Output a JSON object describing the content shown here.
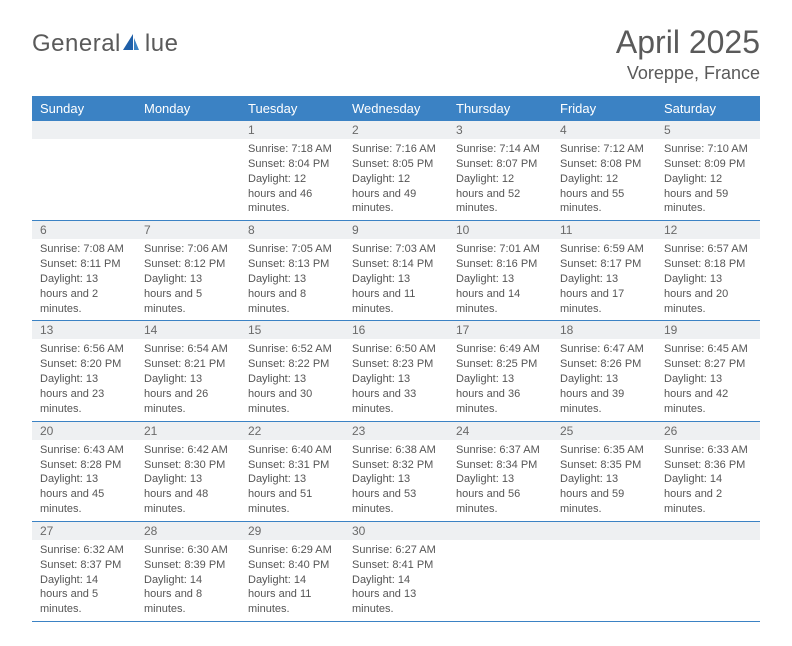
{
  "logo": {
    "textPrefix": "General",
    "textSuffix": "lue",
    "iconColor": "#1f5fa8"
  },
  "header": {
    "monthTitle": "April 2025",
    "location": "Voreppe, France"
  },
  "colors": {
    "headerBg": "#3b82c4",
    "headerText": "#ffffff",
    "dayNumBg": "#eef0f2",
    "borderColor": "#3b82c4",
    "bodyText": "#555555"
  },
  "dayNames": [
    "Sunday",
    "Monday",
    "Tuesday",
    "Wednesday",
    "Thursday",
    "Friday",
    "Saturday"
  ],
  "weeks": [
    [
      {
        "day": "",
        "lines": []
      },
      {
        "day": "",
        "lines": []
      },
      {
        "day": "1",
        "lines": [
          "Sunrise: 7:18 AM",
          "Sunset: 8:04 PM",
          "Daylight: 12 hours and 46 minutes."
        ]
      },
      {
        "day": "2",
        "lines": [
          "Sunrise: 7:16 AM",
          "Sunset: 8:05 PM",
          "Daylight: 12 hours and 49 minutes."
        ]
      },
      {
        "day": "3",
        "lines": [
          "Sunrise: 7:14 AM",
          "Sunset: 8:07 PM",
          "Daylight: 12 hours and 52 minutes."
        ]
      },
      {
        "day": "4",
        "lines": [
          "Sunrise: 7:12 AM",
          "Sunset: 8:08 PM",
          "Daylight: 12 hours and 55 minutes."
        ]
      },
      {
        "day": "5",
        "lines": [
          "Sunrise: 7:10 AM",
          "Sunset: 8:09 PM",
          "Daylight: 12 hours and 59 minutes."
        ]
      }
    ],
    [
      {
        "day": "6",
        "lines": [
          "Sunrise: 7:08 AM",
          "Sunset: 8:11 PM",
          "Daylight: 13 hours and 2 minutes."
        ]
      },
      {
        "day": "7",
        "lines": [
          "Sunrise: 7:06 AM",
          "Sunset: 8:12 PM",
          "Daylight: 13 hours and 5 minutes."
        ]
      },
      {
        "day": "8",
        "lines": [
          "Sunrise: 7:05 AM",
          "Sunset: 8:13 PM",
          "Daylight: 13 hours and 8 minutes."
        ]
      },
      {
        "day": "9",
        "lines": [
          "Sunrise: 7:03 AM",
          "Sunset: 8:14 PM",
          "Daylight: 13 hours and 11 minutes."
        ]
      },
      {
        "day": "10",
        "lines": [
          "Sunrise: 7:01 AM",
          "Sunset: 8:16 PM",
          "Daylight: 13 hours and 14 minutes."
        ]
      },
      {
        "day": "11",
        "lines": [
          "Sunrise: 6:59 AM",
          "Sunset: 8:17 PM",
          "Daylight: 13 hours and 17 minutes."
        ]
      },
      {
        "day": "12",
        "lines": [
          "Sunrise: 6:57 AM",
          "Sunset: 8:18 PM",
          "Daylight: 13 hours and 20 minutes."
        ]
      }
    ],
    [
      {
        "day": "13",
        "lines": [
          "Sunrise: 6:56 AM",
          "Sunset: 8:20 PM",
          "Daylight: 13 hours and 23 minutes."
        ]
      },
      {
        "day": "14",
        "lines": [
          "Sunrise: 6:54 AM",
          "Sunset: 8:21 PM",
          "Daylight: 13 hours and 26 minutes."
        ]
      },
      {
        "day": "15",
        "lines": [
          "Sunrise: 6:52 AM",
          "Sunset: 8:22 PM",
          "Daylight: 13 hours and 30 minutes."
        ]
      },
      {
        "day": "16",
        "lines": [
          "Sunrise: 6:50 AM",
          "Sunset: 8:23 PM",
          "Daylight: 13 hours and 33 minutes."
        ]
      },
      {
        "day": "17",
        "lines": [
          "Sunrise: 6:49 AM",
          "Sunset: 8:25 PM",
          "Daylight: 13 hours and 36 minutes."
        ]
      },
      {
        "day": "18",
        "lines": [
          "Sunrise: 6:47 AM",
          "Sunset: 8:26 PM",
          "Daylight: 13 hours and 39 minutes."
        ]
      },
      {
        "day": "19",
        "lines": [
          "Sunrise: 6:45 AM",
          "Sunset: 8:27 PM",
          "Daylight: 13 hours and 42 minutes."
        ]
      }
    ],
    [
      {
        "day": "20",
        "lines": [
          "Sunrise: 6:43 AM",
          "Sunset: 8:28 PM",
          "Daylight: 13 hours and 45 minutes."
        ]
      },
      {
        "day": "21",
        "lines": [
          "Sunrise: 6:42 AM",
          "Sunset: 8:30 PM",
          "Daylight: 13 hours and 48 minutes."
        ]
      },
      {
        "day": "22",
        "lines": [
          "Sunrise: 6:40 AM",
          "Sunset: 8:31 PM",
          "Daylight: 13 hours and 51 minutes."
        ]
      },
      {
        "day": "23",
        "lines": [
          "Sunrise: 6:38 AM",
          "Sunset: 8:32 PM",
          "Daylight: 13 hours and 53 minutes."
        ]
      },
      {
        "day": "24",
        "lines": [
          "Sunrise: 6:37 AM",
          "Sunset: 8:34 PM",
          "Daylight: 13 hours and 56 minutes."
        ]
      },
      {
        "day": "25",
        "lines": [
          "Sunrise: 6:35 AM",
          "Sunset: 8:35 PM",
          "Daylight: 13 hours and 59 minutes."
        ]
      },
      {
        "day": "26",
        "lines": [
          "Sunrise: 6:33 AM",
          "Sunset: 8:36 PM",
          "Daylight: 14 hours and 2 minutes."
        ]
      }
    ],
    [
      {
        "day": "27",
        "lines": [
          "Sunrise: 6:32 AM",
          "Sunset: 8:37 PM",
          "Daylight: 14 hours and 5 minutes."
        ]
      },
      {
        "day": "28",
        "lines": [
          "Sunrise: 6:30 AM",
          "Sunset: 8:39 PM",
          "Daylight: 14 hours and 8 minutes."
        ]
      },
      {
        "day": "29",
        "lines": [
          "Sunrise: 6:29 AM",
          "Sunset: 8:40 PM",
          "Daylight: 14 hours and 11 minutes."
        ]
      },
      {
        "day": "30",
        "lines": [
          "Sunrise: 6:27 AM",
          "Sunset: 8:41 PM",
          "Daylight: 14 hours and 13 minutes."
        ]
      },
      {
        "day": "",
        "lines": []
      },
      {
        "day": "",
        "lines": []
      },
      {
        "day": "",
        "lines": []
      }
    ]
  ]
}
